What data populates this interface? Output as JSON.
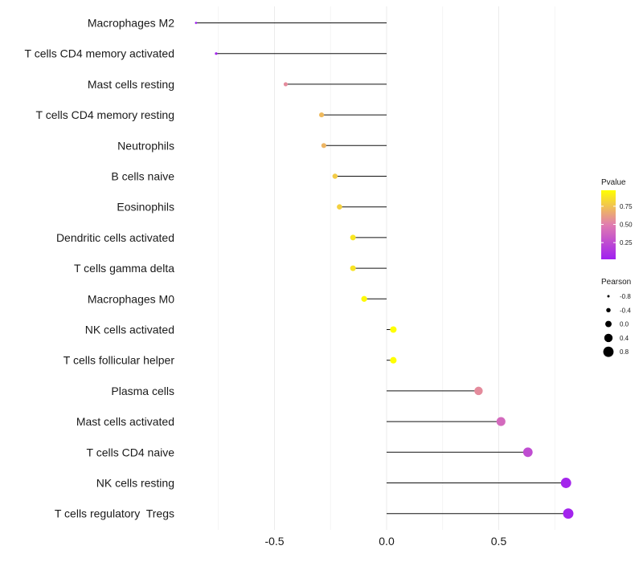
{
  "chart_data": {
    "type": "lollipop",
    "title": "",
    "xlabel": "",
    "ylabel": "",
    "xlim": [
      -0.88,
      0.85
    ],
    "x_ticks": [
      -0.5,
      0.0,
      0.5
    ],
    "x_tick_labels": [
      "-0.5",
      "0.0",
      "0.5"
    ],
    "grid": true,
    "categories": [
      "Macrophages M2",
      "T cells CD4 memory activated",
      "Mast cells resting",
      "T cells CD4 memory resting",
      "Neutrophils",
      "B cells naive",
      "Eosinophils",
      "Dendritic cells activated",
      "T cells gamma delta",
      "Macrophages M0",
      "NK cells activated",
      "T cells follicular helper",
      "Plasma cells",
      "Mast cells activated",
      "T cells CD4 naive",
      "NK cells resting",
      "T cells regulatory  Tregs"
    ],
    "pearson": [
      -0.85,
      -0.76,
      -0.45,
      -0.29,
      -0.28,
      -0.23,
      -0.21,
      -0.15,
      -0.15,
      -0.1,
      0.03,
      0.03,
      0.41,
      0.51,
      0.63,
      0.8,
      0.81
    ],
    "pvalue": [
      0.02,
      0.05,
      0.55,
      0.72,
      0.7,
      0.78,
      0.8,
      0.88,
      0.87,
      0.95,
      0.97,
      0.97,
      0.55,
      0.4,
      0.25,
      0.05,
      0.04
    ],
    "legend_color": {
      "title": "Pvalue",
      "ticks": [
        0.25,
        0.5,
        0.75
      ],
      "tick_labels": [
        "0.25",
        "0.50",
        "0.75"
      ],
      "range": [
        0.02,
        0.97
      ],
      "low_color": "#a020f0",
      "mid_color": "#e07cb0",
      "high_color": "#ffff00"
    },
    "legend_size": {
      "title": "Pearson",
      "values": [
        -0.8,
        -0.4,
        0.0,
        0.4,
        0.8
      ],
      "labels": [
        "-0.8",
        "-0.4",
        "0.0",
        "0.4",
        "0.8"
      ]
    },
    "legend_placement": "right"
  }
}
